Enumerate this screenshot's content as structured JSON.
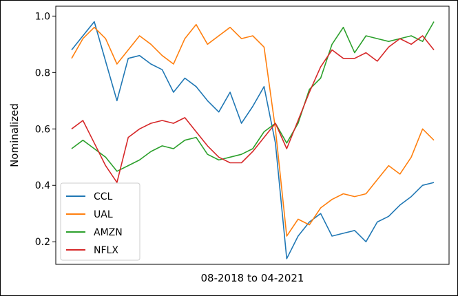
{
  "chart_data": {
    "type": "line",
    "title": "",
    "xlabel": "08-2018 to 04-2021",
    "ylabel": "Nominalized",
    "x_range": [
      "2018-08",
      "2021-04"
    ],
    "ylim": [
      0.12,
      1.035
    ],
    "yticks": [
      "0.2",
      "0.4",
      "0.6",
      "0.8",
      "1.0"
    ],
    "ytick_values": [
      0.2,
      0.4,
      0.6,
      0.8,
      1.0
    ],
    "grid": false,
    "legend_position": "lower-left",
    "x": [
      "2018-08",
      "2018-09",
      "2018-10",
      "2018-11",
      "2018-12",
      "2019-01",
      "2019-02",
      "2019-03",
      "2019-04",
      "2019-05",
      "2019-06",
      "2019-07",
      "2019-08",
      "2019-09",
      "2019-10",
      "2019-11",
      "2019-12",
      "2020-01",
      "2020-02",
      "2020-03",
      "2020-04",
      "2020-05",
      "2020-06",
      "2020-07",
      "2020-08",
      "2020-09",
      "2020-10",
      "2020-11",
      "2020-12",
      "2021-01",
      "2021-02",
      "2021-03",
      "2021-04"
    ],
    "series": [
      {
        "name": "CCL",
        "color": "#1f77b4",
        "values": [
          0.88,
          0.93,
          0.98,
          0.84,
          0.7,
          0.85,
          0.86,
          0.83,
          0.81,
          0.73,
          0.78,
          0.75,
          0.7,
          0.66,
          0.73,
          0.62,
          0.68,
          0.75,
          0.55,
          0.14,
          0.22,
          0.27,
          0.3,
          0.22,
          0.23,
          0.24,
          0.2,
          0.27,
          0.29,
          0.33,
          0.36,
          0.4,
          0.41
        ]
      },
      {
        "name": "UAL",
        "color": "#ff7f0e",
        "values": [
          0.85,
          0.92,
          0.96,
          0.92,
          0.83,
          0.88,
          0.93,
          0.9,
          0.86,
          0.83,
          0.92,
          0.97,
          0.9,
          0.93,
          0.96,
          0.92,
          0.93,
          0.89,
          0.6,
          0.22,
          0.28,
          0.26,
          0.32,
          0.35,
          0.37,
          0.36,
          0.37,
          0.42,
          0.47,
          0.44,
          0.5,
          0.6,
          0.56
        ]
      },
      {
        "name": "AMZN",
        "color": "#2ca02c",
        "values": [
          0.53,
          0.56,
          0.53,
          0.5,
          0.45,
          0.47,
          0.49,
          0.52,
          0.54,
          0.53,
          0.56,
          0.57,
          0.51,
          0.49,
          0.5,
          0.51,
          0.53,
          0.59,
          0.62,
          0.55,
          0.62,
          0.74,
          0.78,
          0.9,
          0.96,
          0.87,
          0.93,
          0.92,
          0.91,
          0.92,
          0.93,
          0.91,
          0.98
        ]
      },
      {
        "name": "NFLX",
        "color": "#d62728",
        "values": [
          0.6,
          0.63,
          0.55,
          0.47,
          0.41,
          0.57,
          0.6,
          0.62,
          0.63,
          0.62,
          0.64,
          0.59,
          0.54,
          0.5,
          0.48,
          0.48,
          0.52,
          0.57,
          0.62,
          0.53,
          0.63,
          0.73,
          0.82,
          0.88,
          0.85,
          0.85,
          0.87,
          0.84,
          0.89,
          0.92,
          0.9,
          0.93,
          0.88
        ]
      }
    ]
  }
}
